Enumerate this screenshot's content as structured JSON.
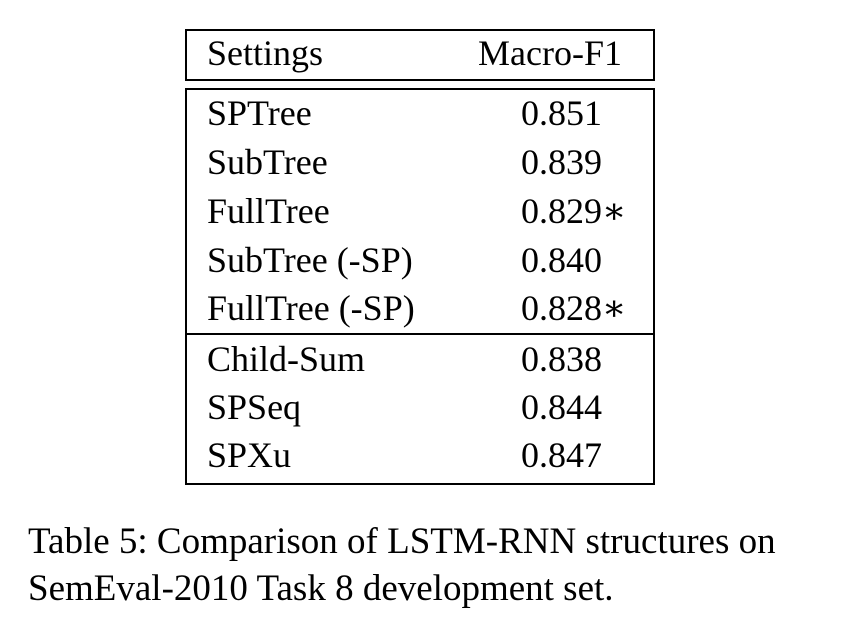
{
  "table": {
    "headers": {
      "settings": "Settings",
      "metric": "Macro-F1"
    },
    "group1": [
      {
        "setting": "SPTree",
        "value": "0.851"
      },
      {
        "setting": "SubTree",
        "value": "0.839"
      },
      {
        "setting": "FullTree",
        "value": "0.829∗"
      },
      {
        "setting": "SubTree (-SP)",
        "value": "0.840"
      },
      {
        "setting": "FullTree (-SP)",
        "value": "0.828∗"
      }
    ],
    "group2": [
      {
        "setting": "Child-Sum",
        "value": "0.838"
      },
      {
        "setting": "SPSeq",
        "value": "0.844"
      },
      {
        "setting": "SPXu",
        "value": "0.847"
      }
    ]
  },
  "caption": {
    "line1": "Table 5: Comparison of LSTM-RNN structures on",
    "line2": "SemEval-2010 Task 8 development set."
  }
}
